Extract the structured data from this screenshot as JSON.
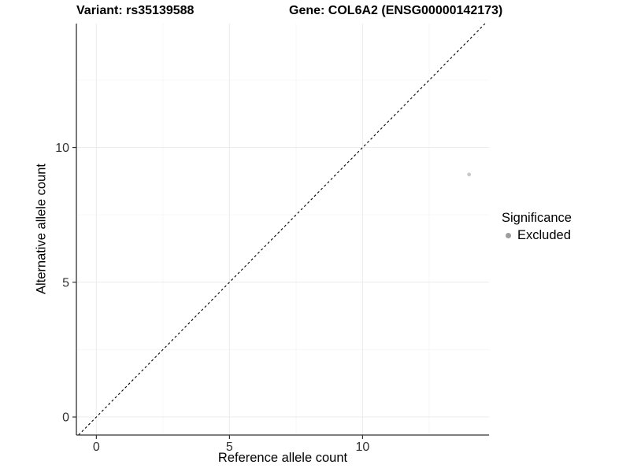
{
  "chart_data": {
    "type": "scatter",
    "title_left": "Variant: rs35139588",
    "title_right": "Gene: COL6A2 (ENSG00000142173)",
    "xlabel": "Reference allele count",
    "ylabel": "Alternative allele count",
    "xlim": [
      -0.75,
      14.75
    ],
    "ylim": [
      -0.67,
      14.6
    ],
    "xticks": [
      0,
      5,
      10
    ],
    "yticks": [
      0,
      5,
      10
    ],
    "xminor": [
      2.5,
      7.5,
      12.5
    ],
    "yminor": [
      2.5,
      7.5,
      12.5
    ],
    "grid": "major and minor gridlines, white background",
    "identity_line": {
      "equation": "y = x",
      "style": "dashed",
      "color": "#000000"
    },
    "series": [
      {
        "name": "Excluded",
        "points": [
          {
            "x": 14,
            "y": 9
          }
        ],
        "color": "#c9c9c9",
        "marker_radius": 2.4
      }
    ],
    "legend": {
      "position": "right",
      "title": "Significance",
      "items": [
        {
          "label": "Excluded",
          "color": "#9e9e9e"
        }
      ]
    },
    "colors": {
      "axis_line": "#333333",
      "tick_label": "#333333",
      "grid_major": "#ebebeb",
      "grid_minor": "#f6f6f6",
      "background": "#ffffff"
    }
  }
}
